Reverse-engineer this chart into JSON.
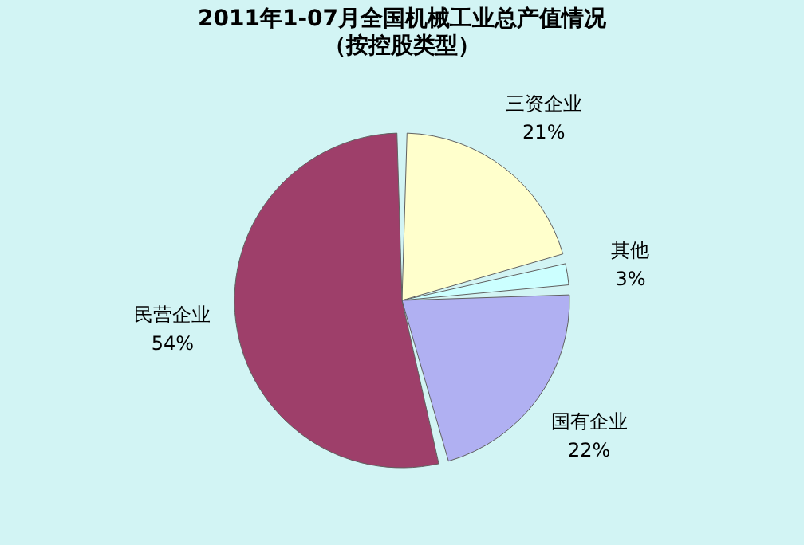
{
  "chart_data": {
    "type": "pie",
    "title": "2011年1-07月全国机械工业总产值情况",
    "subtitle": "（按控股类型）",
    "categories": [
      "三资企业",
      "其他",
      "国有企业",
      "民营企业"
    ],
    "values": [
      21,
      3,
      22,
      54
    ],
    "value_labels": [
      "21%",
      "3%",
      "22%",
      "54%"
    ],
    "colors": [
      "#ffffcc",
      "#ccffff",
      "#b0b0f2",
      "#9e3f6a"
    ],
    "legend": false
  }
}
